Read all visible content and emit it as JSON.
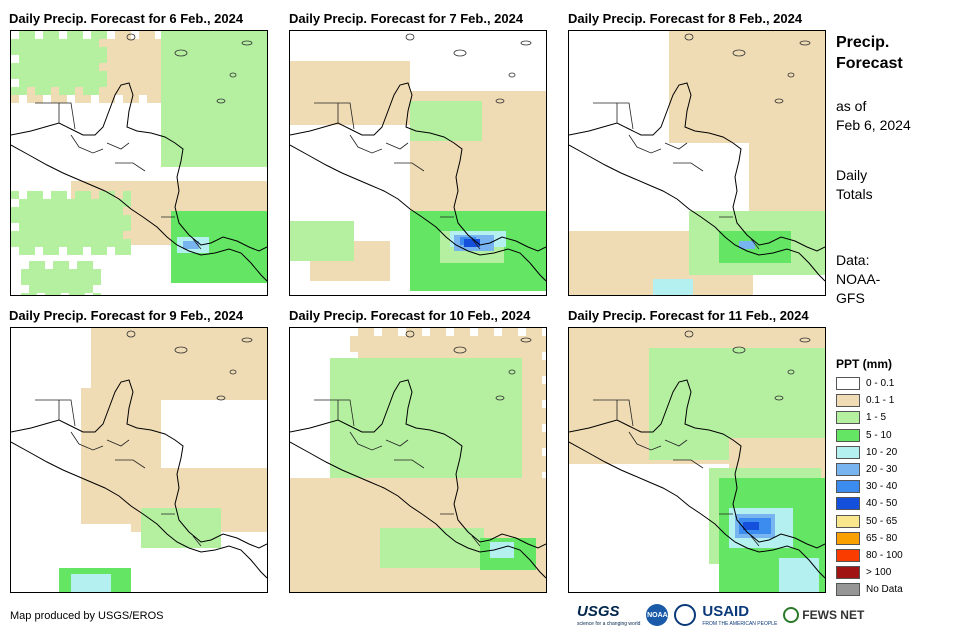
{
  "panels": [
    {
      "title": "Daily Precip. Forecast for 6 Feb., 2024",
      "bands": [
        "0.1 - 1",
        "1 - 5",
        "5 - 10",
        "10 - 20",
        "20 - 30",
        "30 - 40"
      ],
      "max_band": "30 - 40"
    },
    {
      "title": "Daily Precip. Forecast for 7 Feb., 2024",
      "bands": [
        "0.1 - 1",
        "1 - 5",
        "5 - 10",
        "10 - 20",
        "20 - 30",
        "30 - 40",
        "40 - 50"
      ],
      "max_band": "40 - 50"
    },
    {
      "title": "Daily Precip. Forecast for 8 Feb., 2024",
      "bands": [
        "0.1 - 1",
        "1 - 5",
        "5 - 10",
        "10 - 20",
        "20 - 30"
      ],
      "max_band": "20 - 30"
    },
    {
      "title": "Daily Precip. Forecast for 9 Feb., 2024",
      "bands": [
        "0.1 - 1",
        "1 - 5",
        "5 - 10",
        "10 - 20"
      ],
      "max_band": "10 - 20"
    },
    {
      "title": "Daily Precip. Forecast for 10 Feb., 2024",
      "bands": [
        "0.1 - 1",
        "1 - 5",
        "5 - 10",
        "10 - 20"
      ],
      "max_band": "10 - 20"
    },
    {
      "title": "Daily Precip. Forecast for 11 Feb., 2024",
      "bands": [
        "0.1 - 1",
        "1 - 5",
        "5 - 10",
        "10 - 20",
        "20 - 30",
        "30 - 40",
        "40 - 50"
      ],
      "max_band": "40 - 50"
    }
  ],
  "sidebar": {
    "title_line1": "Precip.",
    "title_line2": "Forecast",
    "asof_line1": "as of",
    "asof_line2": "Feb 6, 2024",
    "totals_line1": "Daily",
    "totals_line2": "Totals",
    "data_line1": "Data:",
    "data_line2": "NOAA-",
    "data_line3": "GFS"
  },
  "legend": {
    "title": "PPT (mm)",
    "items": [
      {
        "label": "0 - 0.1",
        "color": "#ffffff"
      },
      {
        "label": "0.1 - 1",
        "color": "#f0dcb4"
      },
      {
        "label": "1 - 5",
        "color": "#b4f0a0"
      },
      {
        "label": "5 - 10",
        "color": "#64e664"
      },
      {
        "label": "10 - 20",
        "color": "#b4f0f0"
      },
      {
        "label": "20 - 30",
        "color": "#78b4f0"
      },
      {
        "label": "30 - 40",
        "color": "#3c8cf0"
      },
      {
        "label": "40 - 50",
        "color": "#1450dc"
      },
      {
        "label": "50 - 65",
        "color": "#fae68c"
      },
      {
        "label": "65 - 80",
        "color": "#faa000"
      },
      {
        "label": "80 - 100",
        "color": "#fa3c00"
      },
      {
        "label": "> 100",
        "color": "#a01414"
      },
      {
        "label": "No Data",
        "color": "#969696"
      }
    ]
  },
  "credit": "Map produced by USGS/EROS",
  "logos": {
    "usgs": "USGS",
    "usgs_tagline": "science for a changing world",
    "noaa": "NOAA",
    "usaid": "USAID",
    "usaid_tagline": "FROM THE AMERICAN PEOPLE",
    "fews": "FEWS NET"
  }
}
